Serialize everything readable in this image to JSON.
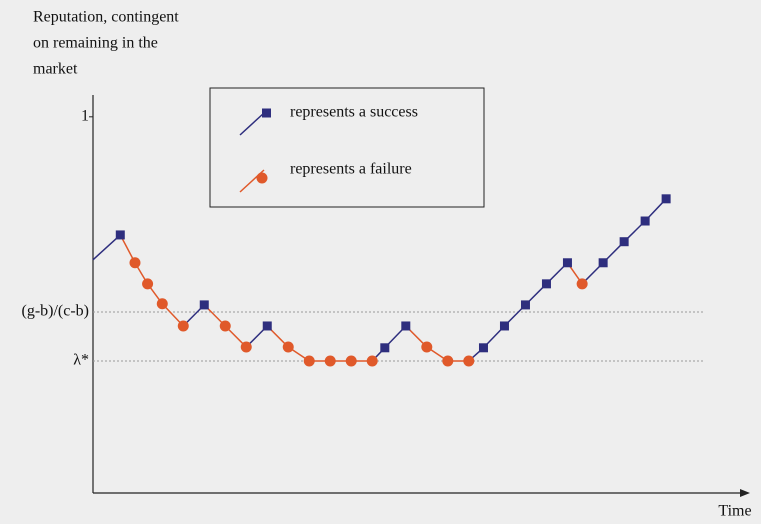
{
  "chart_data": {
    "type": "line",
    "ylabel": [
      "Reputation, contingent",
      "on remaining in the",
      "market"
    ],
    "xlabel": "Time",
    "xlim": [
      0,
      31.2
    ],
    "ylim": [
      0,
      1.05
    ],
    "yticks": [
      1,
      {
        "value": 0.481,
        "label": "(g-b)/(c-b)"
      },
      {
        "value": 0.351,
        "label": "λ*"
      }
    ],
    "grid": true,
    "first_point_marker": false,
    "x": [
      0,
      1.3,
      2.0,
      2.6,
      3.3,
      4.3,
      5.3,
      6.3,
      7.3,
      8.3,
      9.3,
      10.3,
      11.3,
      12.3,
      13.3,
      13.9,
      14.9,
      15.9,
      16.9,
      17.9,
      18.6,
      19.6,
      20.6,
      21.6,
      22.6,
      23.3,
      24.3,
      25.3,
      26.3,
      27.3
    ],
    "series": [
      {
        "name": "represents a success",
        "color": "#2e2e7e",
        "marker": "square",
        "values": [
          0.62,
          0.686,
          null,
          null,
          null,
          null,
          0.5,
          null,
          null,
          0.444,
          null,
          null,
          null,
          null,
          null,
          0.386,
          0.444,
          null,
          null,
          null,
          0.386,
          0.444,
          0.5,
          0.556,
          0.612,
          null,
          0.612,
          0.668,
          0.723,
          0.782
        ]
      },
      {
        "name": "represents a failure",
        "color": "#e0592a",
        "marker": "circle",
        "values": [
          null,
          null,
          0.612,
          0.556,
          0.503,
          0.444,
          null,
          0.444,
          0.388,
          null,
          0.388,
          0.351,
          0.351,
          0.351,
          0.351,
          null,
          null,
          0.388,
          0.351,
          0.351,
          null,
          null,
          null,
          null,
          null,
          0.556,
          null,
          null,
          null,
          null
        ]
      }
    ]
  }
}
